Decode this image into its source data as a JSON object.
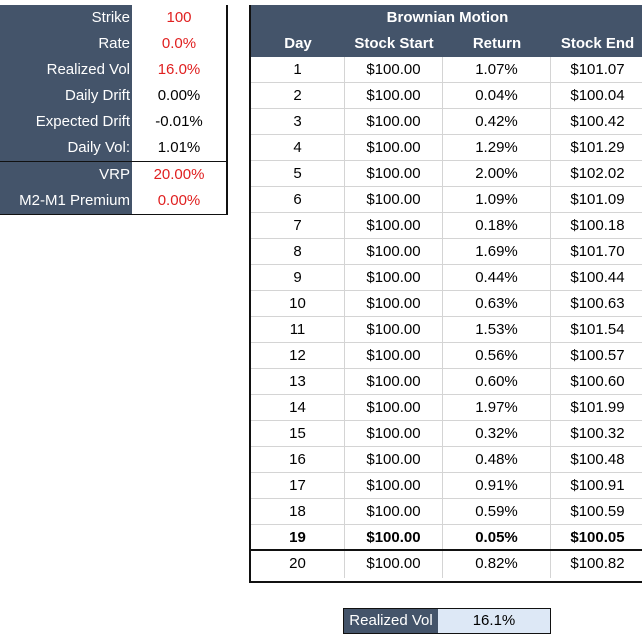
{
  "params": [
    {
      "label": "Strike",
      "value": "100",
      "red": true
    },
    {
      "label": "Rate",
      "value": "0.0%",
      "red": true
    },
    {
      "label": "Realized Vol",
      "value": "16.0%",
      "red": true
    },
    {
      "label": "Daily Drift",
      "value": "0.00%",
      "red": false
    },
    {
      "label": "Expected Drift",
      "value": "-0.01%",
      "red": false
    },
    {
      "label": "Daily Vol:",
      "value": "1.01%",
      "red": false
    },
    {
      "label": "VRP",
      "value": "20.00%",
      "red": true
    },
    {
      "label": "M2-M1 Premium",
      "value": "0.00%",
      "red": true
    }
  ],
  "table": {
    "title": "Brownian Motion",
    "headers": [
      "Day",
      "Stock Start",
      "Return",
      "Stock End"
    ],
    "rows": [
      [
        "1",
        "$100.00",
        "1.07%",
        "$101.07"
      ],
      [
        "2",
        "$100.00",
        "0.04%",
        "$100.04"
      ],
      [
        "3",
        "$100.00",
        "0.42%",
        "$100.42"
      ],
      [
        "4",
        "$100.00",
        "1.29%",
        "$101.29"
      ],
      [
        "5",
        "$100.00",
        "2.00%",
        "$102.02"
      ],
      [
        "6",
        "$100.00",
        "1.09%",
        "$101.09"
      ],
      [
        "7",
        "$100.00",
        "0.18%",
        "$100.18"
      ],
      [
        "8",
        "$100.00",
        "1.69%",
        "$101.70"
      ],
      [
        "9",
        "$100.00",
        "0.44%",
        "$100.44"
      ],
      [
        "10",
        "$100.00",
        "0.63%",
        "$100.63"
      ],
      [
        "11",
        "$100.00",
        "1.53%",
        "$101.54"
      ],
      [
        "12",
        "$100.00",
        "0.56%",
        "$100.57"
      ],
      [
        "13",
        "$100.00",
        "0.60%",
        "$100.60"
      ],
      [
        "14",
        "$100.00",
        "1.97%",
        "$101.99"
      ],
      [
        "15",
        "$100.00",
        "0.32%",
        "$100.32"
      ],
      [
        "16",
        "$100.00",
        "0.48%",
        "$100.48"
      ],
      [
        "17",
        "$100.00",
        "0.91%",
        "$100.91"
      ],
      [
        "18",
        "$100.00",
        "0.59%",
        "$100.59"
      ],
      [
        "19",
        "$100.00",
        "0.05%",
        "$100.05"
      ],
      [
        "20",
        "$100.00",
        "0.82%",
        "$100.82"
      ]
    ],
    "bold_row_day": "19"
  },
  "summary": {
    "label": "Realized Vol",
    "value": "16.1%"
  },
  "colors": {
    "header_bg": "#44546a",
    "accent_red": "#e02020",
    "summary_value_bg": "#dde8f6"
  }
}
